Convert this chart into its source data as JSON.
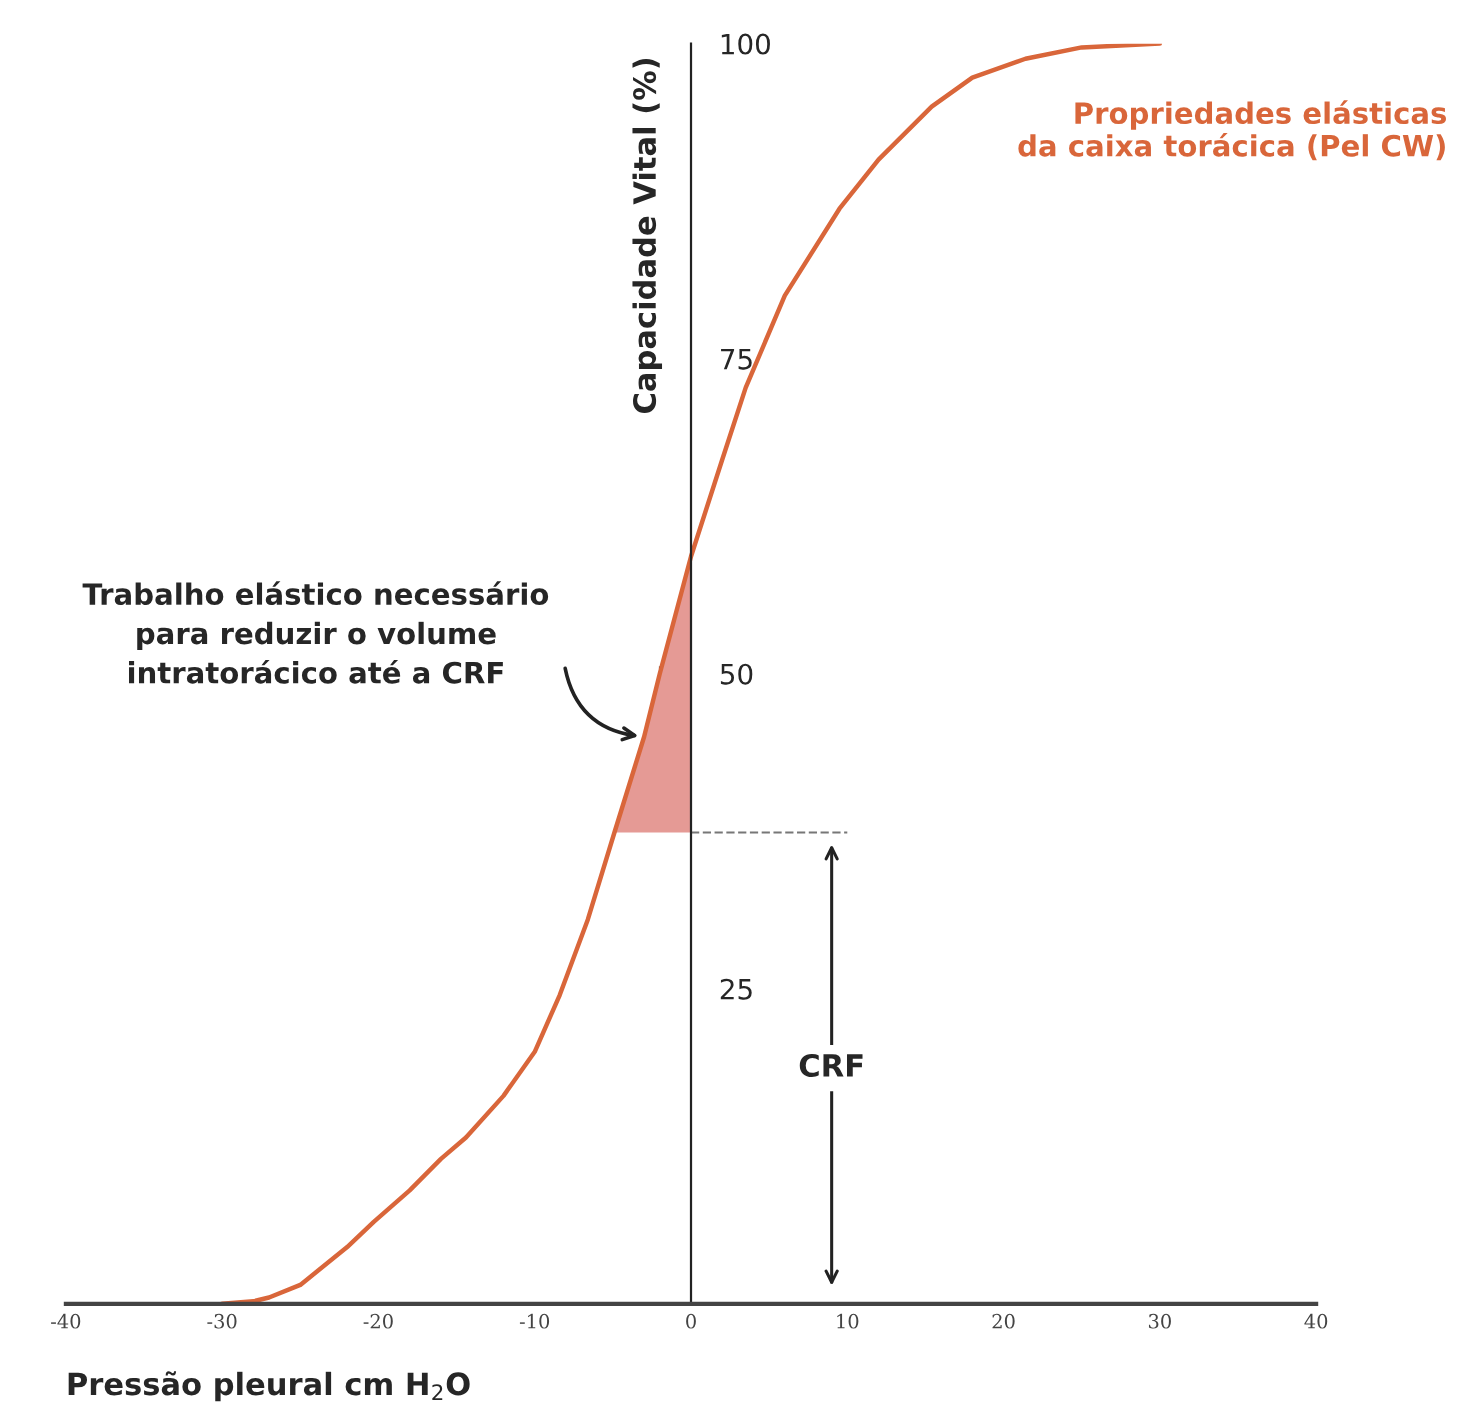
{
  "chart_data": {
    "type": "line",
    "xlabel": "Pressão pleural cm H$_{2}$O",
    "ylabel": "Capacidade Vital (%)",
    "xlim": [
      -40,
      40
    ],
    "xticks": [
      -40,
      -30,
      -20,
      -10,
      0,
      10,
      20,
      30,
      40
    ],
    "ylim": [
      0,
      100
    ],
    "yticks": [
      25,
      50,
      75,
      100
    ],
    "grid": false,
    "legend": false,
    "marker": "none",
    "series": [
      {
        "name": "Propriedades elásticas\nda caixa torácica (Pel CW)",
        "color": "#d9663a",
        "line_style": "solid",
        "x": [
          -30,
          -28,
          -27,
          -25,
          -22,
          -20.3,
          -18,
          -16,
          -14.4,
          -12,
          -10,
          -8.4,
          -6.6,
          -4.9,
          -3,
          -2,
          0,
          2,
          3.5,
          6,
          9.5,
          12,
          15.4,
          18,
          21.4,
          25,
          30
        ],
        "values": [
          0,
          0.2,
          0.5,
          1.5,
          4.5,
          6.5,
          9,
          11.5,
          13.2,
          16.5,
          20,
          24.5,
          30.5,
          37.4,
          45,
          50,
          59.3,
          67,
          72.7,
          80,
          86.9,
          90.8,
          95,
          97.3,
          98.8,
          99.7,
          100
        ]
      },
      {
        "type": "area",
        "color": "#e59a95",
        "x": [
          -4.9,
          -3,
          -2,
          0
        ],
        "values": [
          37.4,
          45,
          50,
          59.3
        ]
      },
      {
        "type": "line",
        "color": "#777777",
        "line_style": "dashed",
        "x": [
          0,
          10
        ],
        "values": [
          37.4,
          37.4
        ]
      }
    ],
    "annotations": [
      {
        "text": "Trabalho elástico necessário\npara reduzir o volume\nintratorácico até a CRF",
        "x": -3,
        "y": 45
      },
      "CRF"
    ]
  }
}
